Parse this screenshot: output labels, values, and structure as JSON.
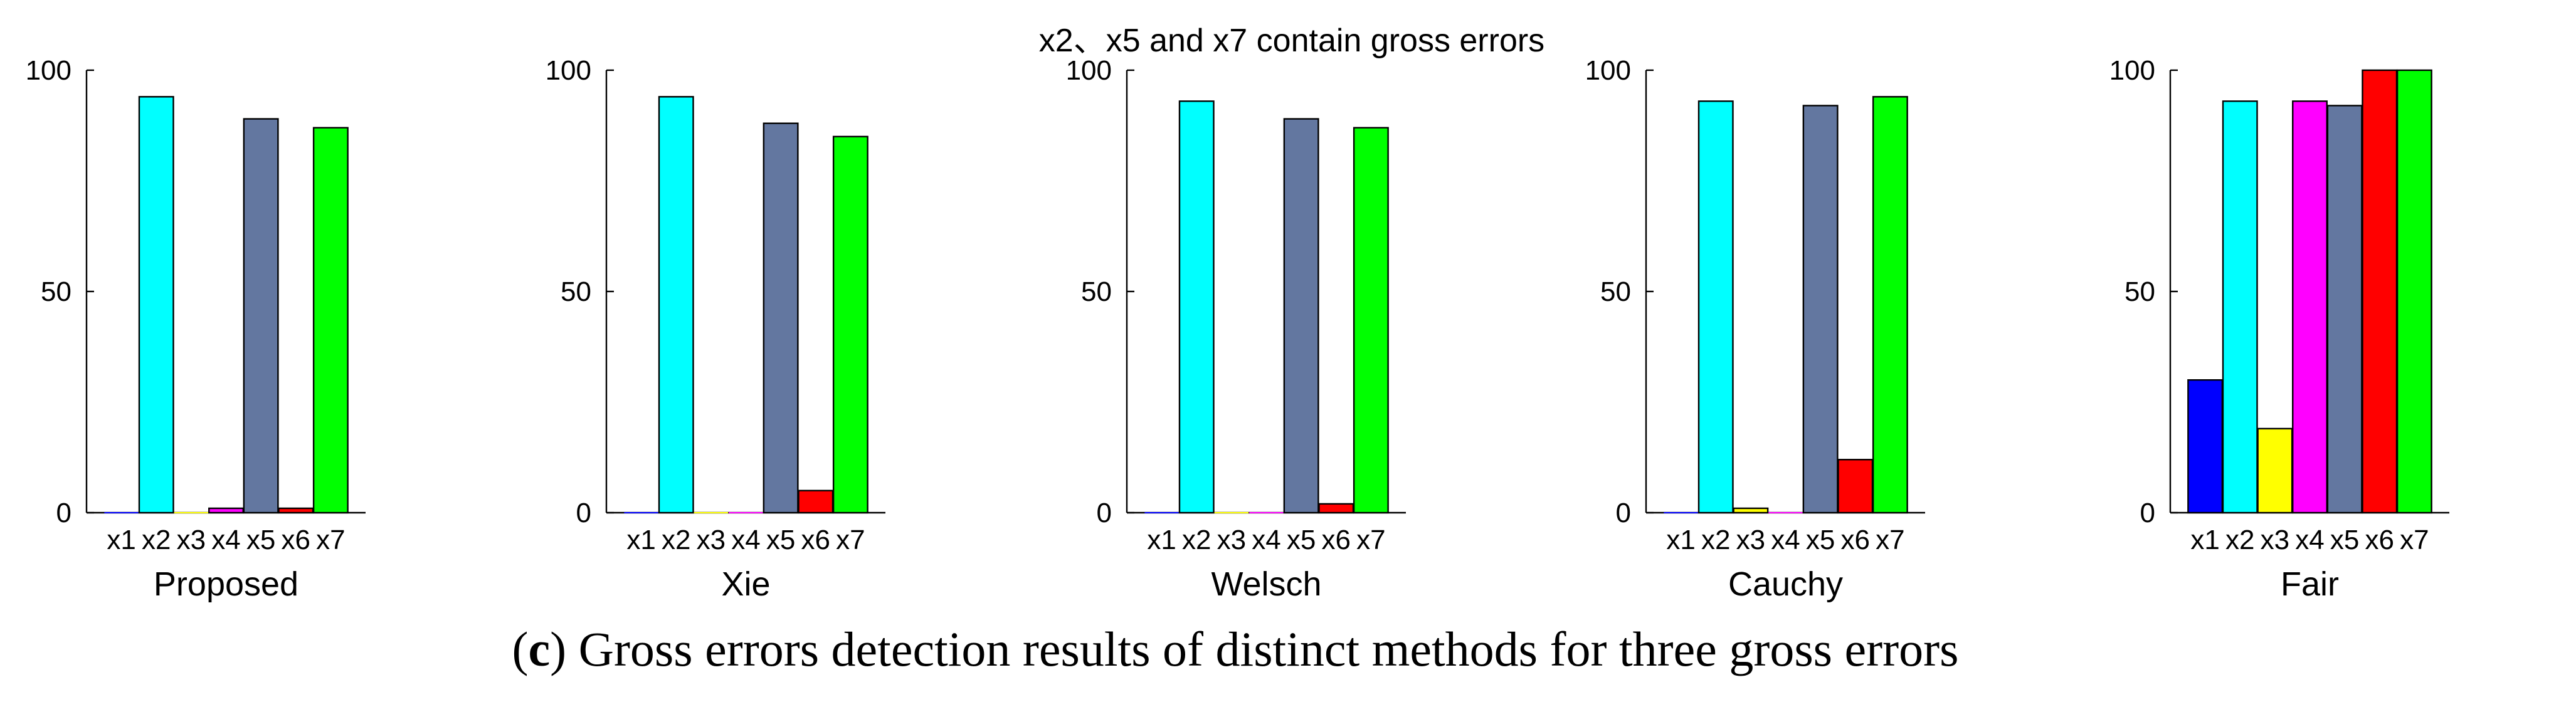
{
  "figure": {
    "suptitle": "x2、x5 and x7 contain gross errors",
    "caption_prefix": "(",
    "caption_letter": "c",
    "caption_text": ") Gross errors detection results of distinct methods for three gross errors"
  },
  "chart_data": [
    {
      "type": "bar",
      "title": "Proposed",
      "categories": [
        "x1",
        "x2",
        "x3",
        "x4",
        "x5",
        "x6",
        "x7"
      ],
      "values": [
        0,
        94,
        0,
        1,
        89,
        1,
        87
      ],
      "ylim": [
        0,
        100
      ],
      "yticks": [
        0,
        50,
        100
      ],
      "grid": false,
      "colors": [
        "#0000ff",
        "#00ffff",
        "#ffff00",
        "#ff00ff",
        "#6377a0",
        "#ff0000",
        "#00ff00"
      ]
    },
    {
      "type": "bar",
      "title": "Xie",
      "categories": [
        "x1",
        "x2",
        "x3",
        "x4",
        "x5",
        "x6",
        "x7"
      ],
      "values": [
        0,
        94,
        0,
        0,
        88,
        5,
        85
      ],
      "ylim": [
        0,
        100
      ],
      "yticks": [
        0,
        50,
        100
      ],
      "grid": false,
      "colors": [
        "#0000ff",
        "#00ffff",
        "#ffff00",
        "#ff00ff",
        "#6377a0",
        "#ff0000",
        "#00ff00"
      ]
    },
    {
      "type": "bar",
      "title": "Welsch",
      "categories": [
        "x1",
        "x2",
        "x3",
        "x4",
        "x5",
        "x6",
        "x7"
      ],
      "values": [
        0,
        93,
        0,
        0,
        89,
        2,
        87
      ],
      "ylim": [
        0,
        100
      ],
      "yticks": [
        0,
        50,
        100
      ],
      "grid": false,
      "colors": [
        "#0000ff",
        "#00ffff",
        "#ffff00",
        "#ff00ff",
        "#6377a0",
        "#ff0000",
        "#00ff00"
      ]
    },
    {
      "type": "bar",
      "title": "Cauchy",
      "categories": [
        "x1",
        "x2",
        "x3",
        "x4",
        "x5",
        "x6",
        "x7"
      ],
      "values": [
        0,
        93,
        1,
        0,
        92,
        12,
        94
      ],
      "ylim": [
        0,
        100
      ],
      "yticks": [
        0,
        50,
        100
      ],
      "grid": false,
      "colors": [
        "#0000ff",
        "#00ffff",
        "#ffff00",
        "#ff00ff",
        "#6377a0",
        "#ff0000",
        "#00ff00"
      ]
    },
    {
      "type": "bar",
      "title": "Fair",
      "categories": [
        "x1",
        "x2",
        "x3",
        "x4",
        "x5",
        "x6",
        "x7"
      ],
      "values": [
        30,
        93,
        19,
        93,
        92,
        100,
        100
      ],
      "ylim": [
        0,
        100
      ],
      "yticks": [
        0,
        50,
        100
      ],
      "grid": false,
      "colors": [
        "#0000ff",
        "#00ffff",
        "#ffff00",
        "#ff00ff",
        "#6377a0",
        "#ff0000",
        "#00ff00"
      ]
    }
  ]
}
